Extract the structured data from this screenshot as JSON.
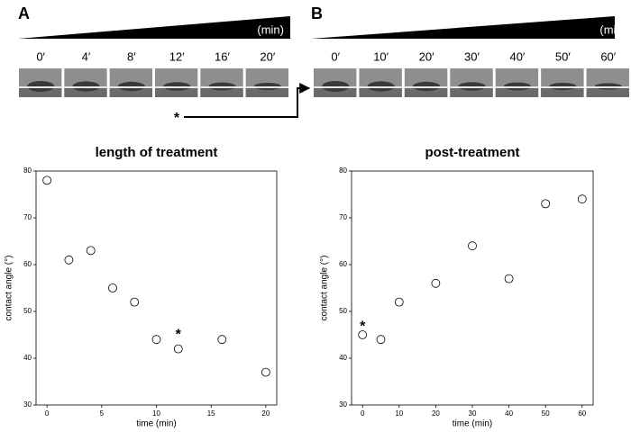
{
  "strips": [
    {
      "label": "A",
      "unit": "(min)",
      "times": [
        "0′",
        "4′",
        "8′",
        "12′",
        "16′",
        "20′"
      ],
      "mark": "*"
    },
    {
      "label": "B",
      "unit": "(min)",
      "times": [
        "0′",
        "10′",
        "20′",
        "30′",
        "40′",
        "50′",
        "60′"
      ]
    }
  ],
  "chart_data": [
    {
      "type": "scatter",
      "title": "length of treatment",
      "xlabel": "time (min)",
      "ylabel": "contact angle (°)",
      "x": [
        0,
        2,
        4,
        6,
        8,
        10,
        12,
        16,
        20
      ],
      "values": [
        78,
        61,
        63,
        55,
        52,
        44,
        42,
        44,
        37
      ],
      "xlim": [
        -1,
        21
      ],
      "xticks": [
        0,
        5,
        10,
        15,
        20
      ],
      "ylim": [
        30,
        80
      ],
      "yticks": [
        30,
        40,
        50,
        60,
        70,
        80
      ],
      "color": "#000000",
      "annotations": [
        {
          "text": "*",
          "x": 12,
          "y": 45.5
        }
      ]
    },
    {
      "type": "scatter",
      "title": "post-treatment",
      "xlabel": "time (min)",
      "ylabel": "contact angle (°)",
      "x": [
        0,
        5,
        10,
        20,
        30,
        40,
        50,
        60
      ],
      "values": [
        45,
        44,
        52,
        56,
        64,
        57,
        73,
        74
      ],
      "xlim": [
        -3,
        63
      ],
      "xticks": [
        0,
        10,
        20,
        30,
        40,
        50,
        60
      ],
      "ylim": [
        30,
        80
      ],
      "yticks": [
        30,
        40,
        50,
        60,
        70,
        80
      ],
      "color": "#000000",
      "annotations": [
        {
          "text": "*",
          "x": 0,
          "y": 47.3
        }
      ]
    }
  ]
}
